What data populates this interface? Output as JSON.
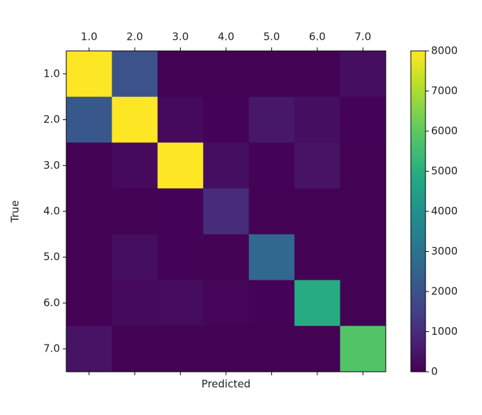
{
  "chart_data": {
    "type": "heatmap",
    "xlabel": "Predicted",
    "ylabel": "True",
    "categories": [
      "1.0",
      "2.0",
      "3.0",
      "4.0",
      "5.0",
      "6.0",
      "7.0"
    ],
    "values": [
      [
        8000,
        2000,
        20,
        20,
        20,
        20,
        300
      ],
      [
        2200,
        8000,
        200,
        50,
        500,
        300,
        50
      ],
      [
        30,
        200,
        8000,
        300,
        50,
        400,
        30
      ],
      [
        20,
        30,
        50,
        1000,
        20,
        20,
        20
      ],
      [
        20,
        300,
        50,
        20,
        2700,
        30,
        20
      ],
      [
        30,
        200,
        250,
        100,
        50,
        4900,
        30
      ],
      [
        400,
        30,
        20,
        20,
        20,
        30,
        5800
      ]
    ],
    "cmap": "viridis",
    "clim": [
      0,
      8000
    ],
    "cticks": [
      0,
      1000,
      2000,
      3000,
      4000,
      5000,
      6000,
      7000,
      8000
    ]
  }
}
